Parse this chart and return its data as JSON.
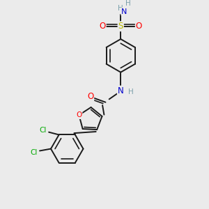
{
  "bg_color": "#ebebeb",
  "bond_color": "#1a1a1a",
  "atom_colors": {
    "O": "#ff0000",
    "N": "#0000cc",
    "S": "#bbbb00",
    "Cl": "#00aa00",
    "H": "#7a9faa",
    "C": "#1a1a1a"
  },
  "figsize": [
    3.0,
    3.0
  ],
  "dpi": 100,
  "lw": 1.4,
  "lw_inner": 1.2
}
